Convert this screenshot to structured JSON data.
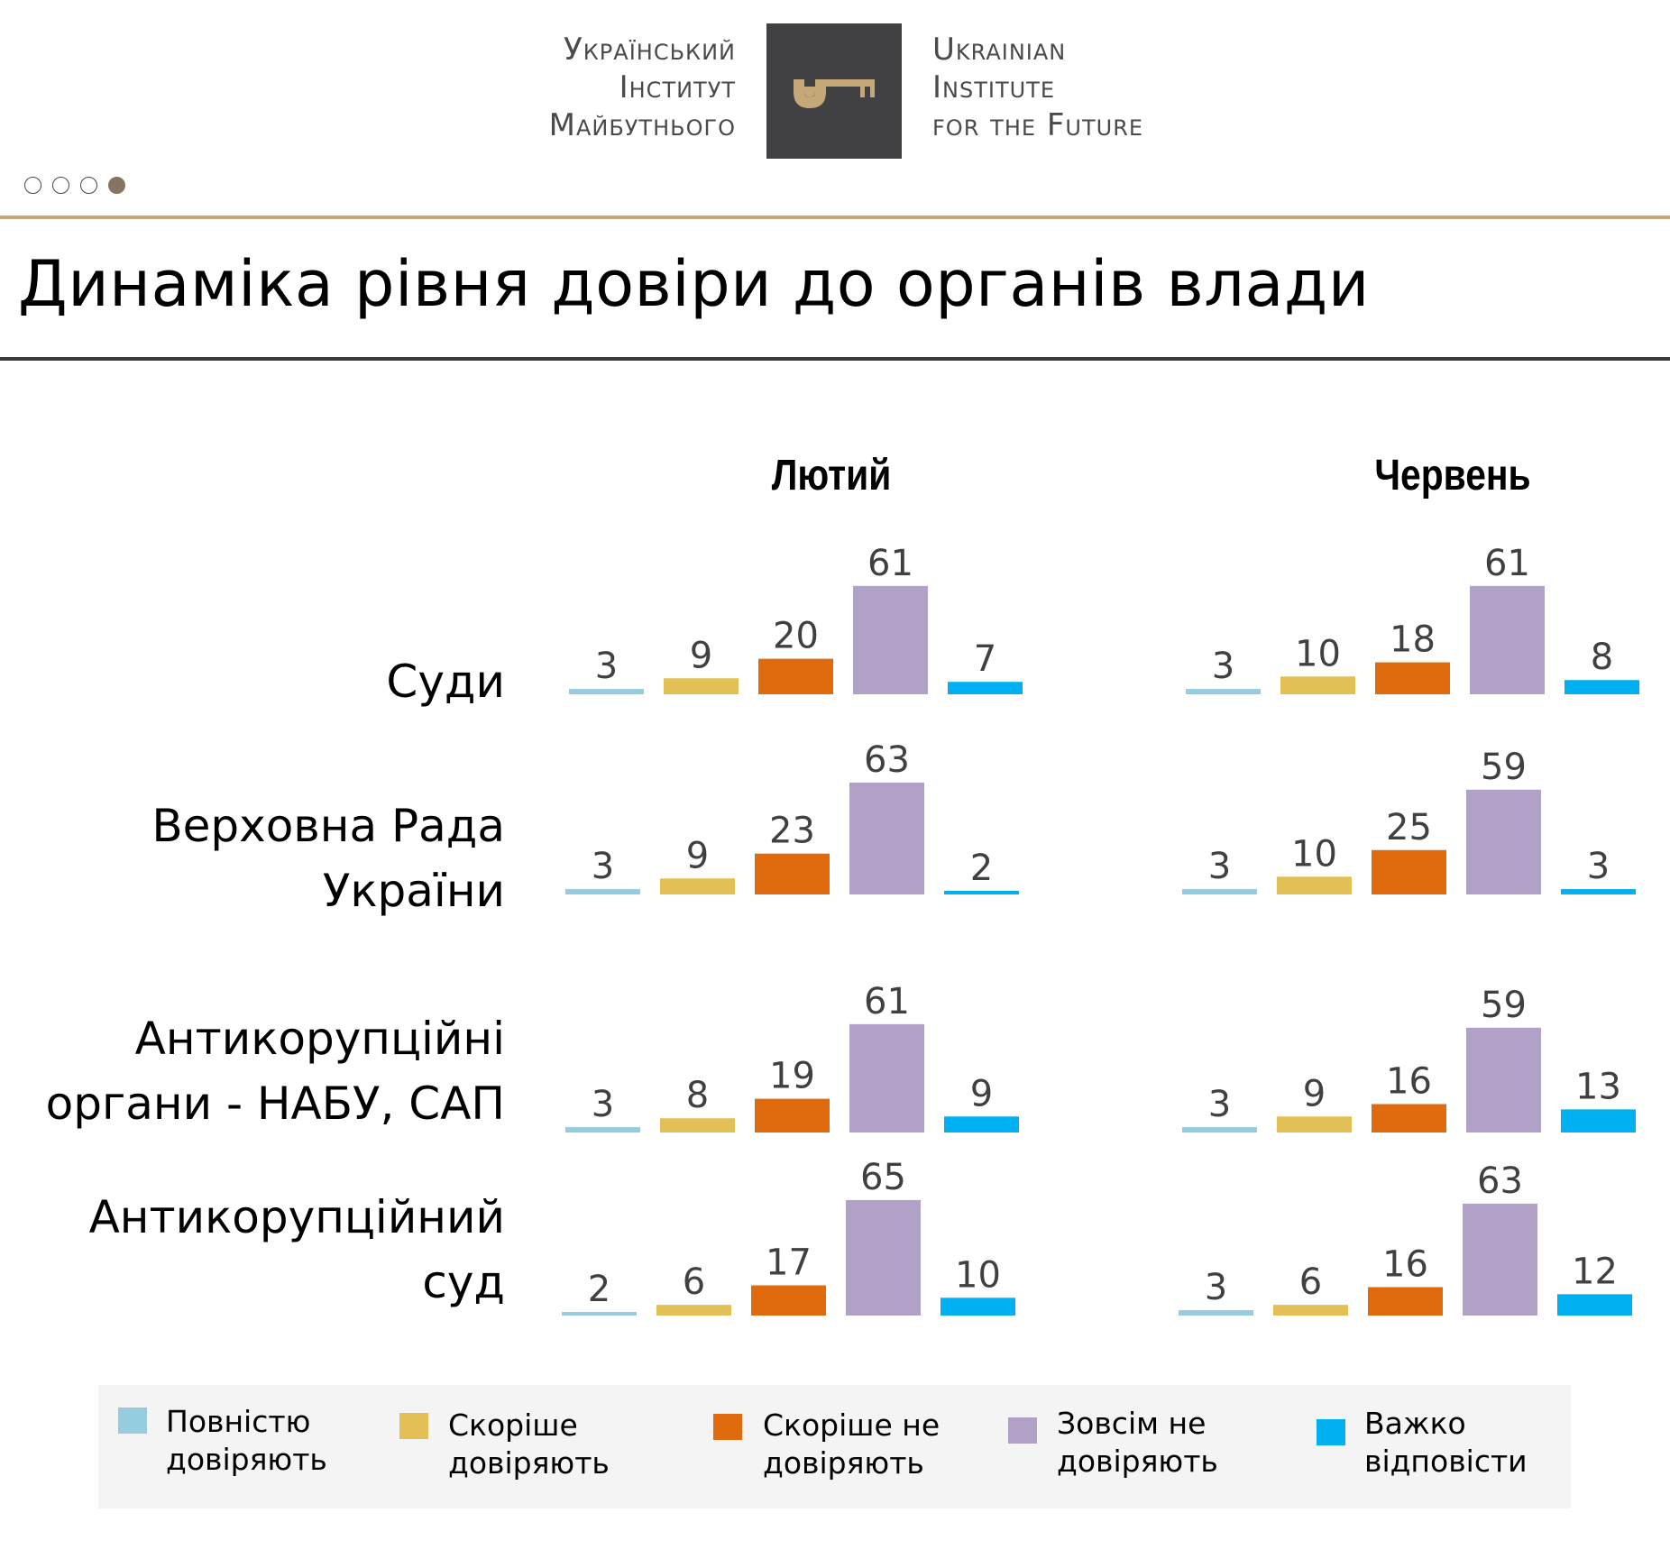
{
  "header": {
    "logo_left_lines": [
      "Український",
      "Інститут",
      "Майбутнього"
    ],
    "logo_right_lines": [
      "Ukrainian",
      "Institute",
      "for the Future"
    ],
    "logo_icon": "key-icon",
    "pager": {
      "total": 4,
      "active_index": 3
    }
  },
  "page_title": "Динаміка рівня довіри до органів влади",
  "colors": {
    "fully_trust": "#94cddf",
    "rather_trust": "#e2c055",
    "rather_not_trust": "#e06b0e",
    "not_trust_at_all": "#b1a1c7",
    "hard_to_say": "#00b0f0",
    "accent_gold": "#c4a878",
    "logo_bg": "#414042"
  },
  "chart_data": {
    "type": "bar",
    "title": "Динаміка рівня довіри до органів влади",
    "panels": [
      "Лютий",
      "Червень"
    ],
    "categories": [
      "Суди",
      "Верховна Рада України",
      "Антикорупційні органи - НАБУ, САП",
      "Антикорупційний суд"
    ],
    "category_label_lines": [
      [
        "Суди"
      ],
      [
        "Верховна Рада",
        "України"
      ],
      [
        "Антикорупційні",
        "органи - НАБУ, САП"
      ],
      [
        "Антикорупційний",
        "суд"
      ]
    ],
    "series": [
      {
        "name": "Повністю довіряють",
        "legend_lines": [
          "Повністю",
          "довіряють"
        ],
        "color": "#94cddf",
        "values": {
          "Лютий": [
            3,
            3,
            3,
            2
          ],
          "Червень": [
            3,
            3,
            3,
            3
          ]
        }
      },
      {
        "name": "Скоріше довіряють",
        "legend_lines": [
          "Скоріше",
          "довіряють"
        ],
        "color": "#e2c055",
        "values": {
          "Лютий": [
            9,
            9,
            8,
            6
          ],
          "Червень": [
            10,
            10,
            9,
            6
          ]
        }
      },
      {
        "name": "Скоріше не довіряють",
        "legend_lines": [
          "Скоріше не",
          "довіряють"
        ],
        "color": "#e06b0e",
        "values": {
          "Лютий": [
            20,
            23,
            19,
            17
          ],
          "Червень": [
            18,
            25,
            16,
            16
          ]
        }
      },
      {
        "name": "Зовсім не довіряють",
        "legend_lines": [
          "Зовсім не",
          "довіряють"
        ],
        "color": "#b1a1c7",
        "values": {
          "Лютий": [
            61,
            63,
            61,
            65
          ],
          "Червень": [
            61,
            59,
            59,
            63
          ]
        }
      },
      {
        "name": "Важко відповісти",
        "legend_lines": [
          "Важко",
          "відповісти"
        ],
        "color": "#00b0f0",
        "values": {
          "Лютий": [
            7,
            2,
            9,
            10
          ],
          "Червень": [
            8,
            3,
            13,
            12
          ]
        }
      }
    ],
    "unit": "%",
    "ylim": [
      0,
      70
    ],
    "grid": false,
    "axes_visible": false,
    "legend_position": "bottom"
  }
}
